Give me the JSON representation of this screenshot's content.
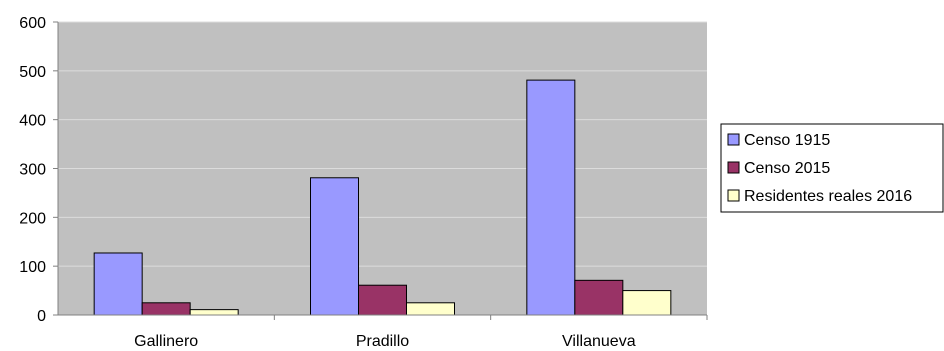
{
  "chart_data": {
    "type": "bar",
    "categories": [
      "Gallinero",
      "Pradillo",
      "Villanueva"
    ],
    "series": [
      {
        "name": "Censo 1915",
        "values": [
          127,
          281,
          481
        ],
        "color": "#9999ff"
      },
      {
        "name": "Censo 2015",
        "values": [
          25,
          61,
          71
        ],
        "color": "#993366"
      },
      {
        "name": "Residentes reales 2016",
        "values": [
          11,
          25,
          50
        ],
        "color": "#ffffcc"
      }
    ],
    "yticks": [
      "0",
      "100",
      "200",
      "300",
      "400",
      "500",
      "600"
    ],
    "ylim": [
      0,
      600
    ],
    "grid": true,
    "legend_position": "right",
    "plot_background": "#c0c0c0",
    "gridline_color": "#dcdcdc"
  }
}
